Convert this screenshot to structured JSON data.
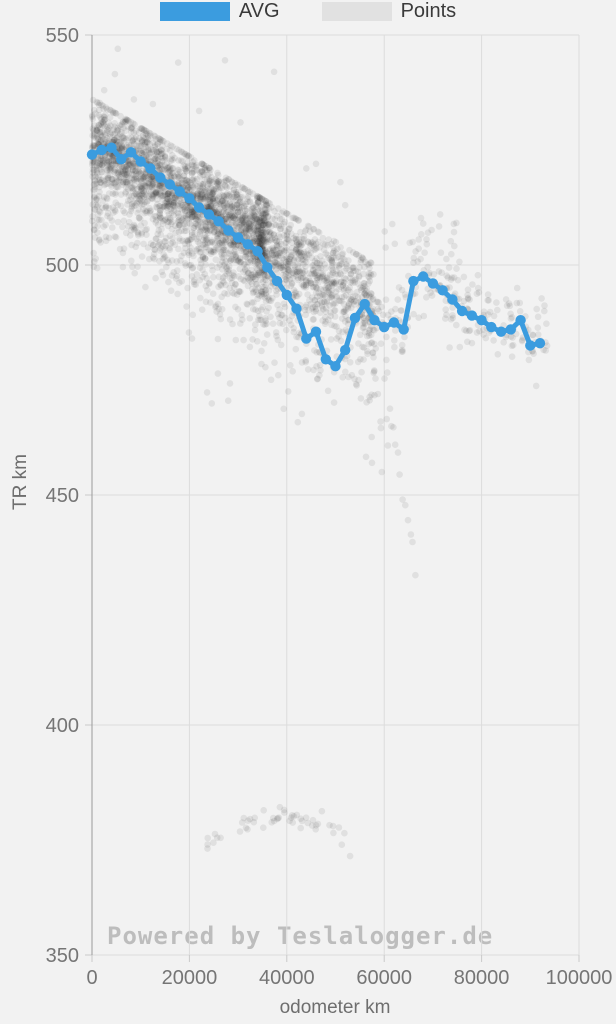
{
  "legend": {
    "avg_label": "AVG",
    "points_label": "Points"
  },
  "watermark": "Powered by Teslalogger.de",
  "colors": {
    "background": "#f2f2f2",
    "avg": "#3b9cdf",
    "points_swatch": "#e1e1e1",
    "point_fill": "#1e1e1e",
    "point_opacity": 0.085,
    "grid": "#dcdcdc",
    "axis": "#9b9b9b",
    "tick": "#c9c9c9",
    "tick_label": "#757575",
    "axis_title": "#6e6e6e",
    "legend_text": "#3a3a3a",
    "watermark": "#bdbdbd"
  },
  "chart_data": {
    "type": "scatter",
    "title": "",
    "xlabel": "odometer km",
    "ylabel": "TR km",
    "xlim": [
      0,
      100000
    ],
    "ylim": [
      350,
      550
    ],
    "grid": true,
    "legend_position": "top-center",
    "x_ticks": [
      0,
      20000,
      40000,
      60000,
      80000,
      100000
    ],
    "y_ticks": [
      350,
      400,
      450,
      500,
      550
    ],
    "x_tick_labels": [
      "0",
      "20000",
      "40000",
      "60000",
      "80000",
      "100000"
    ],
    "y_tick_labels": [
      "350",
      "400",
      "450",
      "500",
      "550"
    ],
    "series": [
      {
        "name": "AVG",
        "type": "line",
        "bin_km": 2000,
        "x": [
          0,
          2000,
          4000,
          6000,
          8000,
          10000,
          12000,
          14000,
          16000,
          18000,
          20000,
          22000,
          24000,
          26000,
          28000,
          30000,
          32000,
          34000,
          36000,
          38000,
          40000,
          42000,
          44000,
          46000,
          48000,
          50000,
          52000,
          54000,
          56000,
          58000,
          60000,
          62000,
          64000,
          66000,
          68000,
          70000,
          72000,
          74000,
          76000,
          78000,
          80000,
          82000,
          84000,
          86000,
          88000,
          90000,
          92000
        ],
        "y": [
          524,
          525,
          525.5,
          523,
          524.5,
          522.5,
          521,
          519,
          517.5,
          516,
          514.5,
          512.5,
          511,
          509.5,
          507.5,
          506,
          504.5,
          503,
          499.5,
          496.5,
          493.5,
          490.5,
          484,
          485.5,
          479.5,
          478,
          481.5,
          488.5,
          491.5,
          488,
          486.5,
          487.5,
          486,
          496.5,
          497.5,
          496,
          494.5,
          492.5,
          490,
          489,
          488,
          486.5,
          485.5,
          486,
          488,
          482.5,
          483
        ]
      },
      {
        "name": "Points",
        "type": "scatter",
        "points_spec": {
          "seed": 20240601,
          "radius": 3.3,
          "trend": {
            "at0": 526,
            "slope": -0.00062
          },
          "clusters": [
            {
              "kind": "cloud",
              "count": 2600,
              "x_main": [
                0,
                36000
              ],
              "x_tail": [
                34000,
                58000
              ],
              "main_frac": 0.72,
              "tail_pow": 1.3,
              "offset_mean": 1.5,
              "offset_sd": 5.0,
              "offset_clamp": [
                -13,
                10
              ]
            },
            {
              "kind": "cloud",
              "count": 650,
              "x_main": [
                0,
                36000
              ],
              "x_tail": [
                34000,
                58000
              ],
              "main_frac": 0.68,
              "tail_pow": 1.3,
              "offset_mean": -9,
              "offset_sd": 6,
              "offset_clamp": [
                -24,
                -2
              ]
            },
            {
              "kind": "band_avg",
              "count": 230,
              "x_range": [
                55000,
                93500
              ],
              "offset_mean": 0.5,
              "offset_sd": 4.2,
              "offset_clamp": [
                -11,
                11
              ]
            },
            {
              "kind": "below",
              "count": 85,
              "x_range": [
                15000,
                62000
              ],
              "base_drop": 14,
              "drop_sd": 9,
              "min_value": 458
            },
            {
              "kind": "arc",
              "count": 50,
              "x_range": [
                23500,
                52500
              ],
              "peak_x": 39000,
              "peak_y": 380.3,
              "half_width": 13500,
              "dip": 4.8,
              "noise": 1.2
            },
            {
              "kind": "chain",
              "count": 13,
              "x_start": 60200,
              "x_step": 520,
              "y_start": 477,
              "y_step": -3.65,
              "noise": 1.5
            },
            {
              "kind": "blob",
              "count": 22,
              "x_range": [
                60000,
                75000
              ],
              "y_mean": 506,
              "y_sd": 4
            },
            {
              "kind": "blob",
              "count": 40,
              "x_range": [
                0,
                1800
              ],
              "y_mean": 514,
              "y_sd": 8
            }
          ],
          "outliers": [
            [
              2500,
              538
            ],
            [
              5300,
              547
            ],
            [
              4700,
              541.5
            ],
            [
              8600,
              536
            ],
            [
              12500,
              535
            ],
            [
              17700,
              544
            ],
            [
              22000,
              533.5
            ],
            [
              27300,
              544.5
            ],
            [
              30500,
              531
            ],
            [
              37400,
              542
            ],
            [
              44000,
              521
            ],
            [
              46000,
              522
            ],
            [
              51000,
              518
            ],
            [
              52000,
              513
            ],
            [
              53000,
              371.5
            ],
            [
              57500,
              457
            ],
            [
              59500,
              455
            ],
            [
              68000,
              509
            ],
            [
              71500,
              511
            ],
            [
              87300,
              495
            ]
          ]
        }
      }
    ]
  }
}
